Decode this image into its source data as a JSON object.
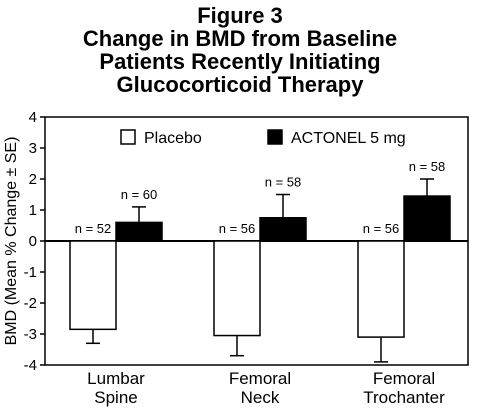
{
  "chart_data": {
    "type": "bar",
    "title_lines": [
      "Figure 3",
      "Change in BMD from Baseline",
      "Patients Recently Initiating",
      "Glucocorticoid Therapy"
    ],
    "ylabel": "BMD (Mean % Change ± SE)",
    "xlabel": "",
    "ylim": [
      -4,
      4
    ],
    "yticks": [
      "4",
      "3",
      "2",
      "1",
      "0",
      "-1",
      "-2",
      "-3",
      "-4"
    ],
    "legend_position": "top",
    "categories": [
      [
        "Lumbar",
        "Spine"
      ],
      [
        "Femoral",
        "Neck"
      ],
      [
        "Femoral",
        "Trochanter"
      ]
    ],
    "series": [
      {
        "name": "Placebo",
        "color": "#ffffff",
        "values": [
          -2.85,
          -3.05,
          -3.1
        ],
        "errors": [
          0.45,
          0.65,
          0.8
        ],
        "n_labels": [
          "n = 52",
          "n = 56",
          "n = 56"
        ]
      },
      {
        "name": "ACTONEL 5 mg",
        "color": "#000000",
        "values": [
          0.6,
          0.75,
          1.45
        ],
        "errors": [
          0.5,
          0.75,
          0.55
        ],
        "n_labels": [
          "n = 60",
          "n = 58",
          "n = 58"
        ]
      }
    ]
  }
}
